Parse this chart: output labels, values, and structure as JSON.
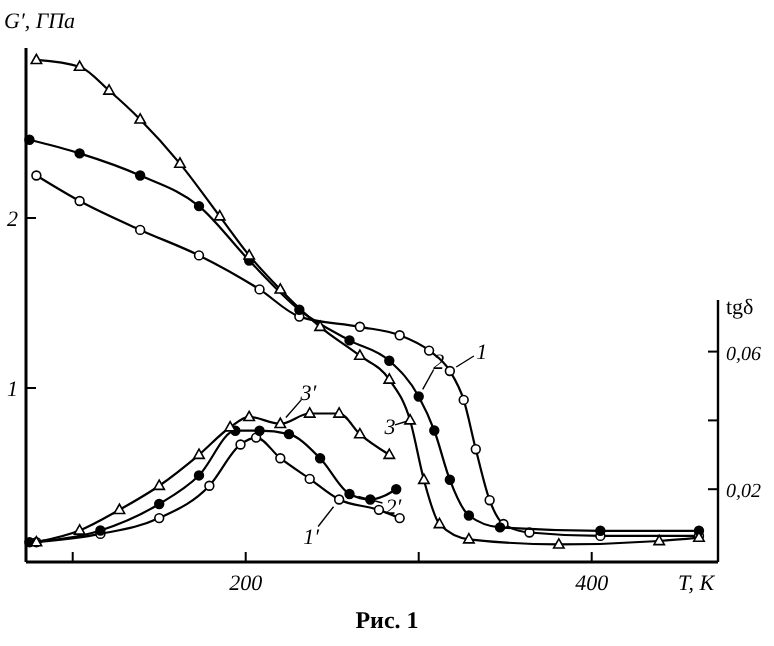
{
  "chart_data": {
    "type": "line",
    "xlabel": "T, К",
    "ylabel": "G′, ГПа",
    "y2label": "tgδ",
    "annotations": [
      "Рис. 1"
    ],
    "xlim": [
      73,
      473
    ],
    "xticks": [
      {
        "value": 100,
        "label": null
      },
      200,
      {
        "value": 300,
        "label": null
      },
      400
    ],
    "ylim": [
      0,
      3
    ],
    "yticks": [
      1,
      2
    ],
    "y2lim": [
      0,
      0.075
    ],
    "y2ticks": [
      {
        "value": 0.02,
        "label": "0,02"
      },
      {
        "value": 0.04,
        "label": null
      },
      {
        "value": 0.06,
        "label": "0,06"
      }
    ],
    "grid": false,
    "legend": "right",
    "line_style": "solid",
    "series": [
      {
        "name": "1",
        "color": "#000000",
        "marker": "circle",
        "x": [
          79,
          104,
          139,
          173,
          208,
          231,
          266,
          289,
          306,
          318,
          326,
          333,
          341,
          349,
          364,
          405,
          462
        ],
        "values": [
          2.25,
          2.1,
          1.93,
          1.78,
          1.58,
          1.42,
          1.36,
          1.31,
          1.22,
          1.1,
          0.93,
          0.64,
          0.34,
          0.2,
          0.15,
          0.13,
          0.13
        ]
      },
      {
        "name": "2",
        "color": "#000000",
        "marker": "circle",
        "x": [
          75,
          104,
          139,
          173,
          202,
          231,
          260,
          283,
          300,
          309,
          318,
          329,
          347,
          405,
          462
        ],
        "values": [
          2.46,
          2.38,
          2.25,
          2.07,
          1.75,
          1.46,
          1.28,
          1.16,
          0.95,
          0.75,
          0.46,
          0.25,
          0.18,
          0.16,
          0.16
        ]
      },
      {
        "name": "3",
        "color": "#000000",
        "marker": "triangle",
        "x": [
          79,
          104,
          121,
          139,
          162,
          185,
          202,
          220,
          243,
          266,
          283,
          295,
          303,
          312,
          329,
          381,
          439,
          462
        ],
        "values": [
          2.93,
          2.89,
          2.75,
          2.58,
          2.32,
          2.01,
          1.78,
          1.58,
          1.36,
          1.19,
          1.05,
          0.81,
          0.46,
          0.2,
          0.11,
          0.08,
          0.1,
          0.12
        ]
      },
      {
        "name": "1′",
        "color": "#000000",
        "marker": "circle",
        "axis": "y2",
        "x": [
          79,
          116,
          150,
          179,
          197,
          206,
          220,
          237,
          254,
          277,
          289
        ],
        "values": [
          0.0046,
          0.007,
          0.0116,
          0.021,
          0.033,
          0.035,
          0.029,
          0.023,
          0.017,
          0.014,
          0.0116
        ]
      },
      {
        "name": "2′",
        "color": "#000000",
        "marker": "circle",
        "axis": "y2",
        "x": [
          75,
          116,
          150,
          173,
          194,
          208,
          225,
          243,
          260,
          272,
          287
        ],
        "values": [
          0.0046,
          0.008,
          0.0157,
          0.024,
          0.037,
          0.037,
          0.036,
          0.029,
          0.0186,
          0.017,
          0.02
        ]
      },
      {
        "name": "3′",
        "color": "#000000",
        "marker": "triangle",
        "axis": "y2",
        "x": [
          79,
          104,
          127,
          150,
          173,
          191,
          202,
          220,
          237,
          254,
          266,
          283
        ],
        "values": [
          0.0046,
          0.008,
          0.014,
          0.021,
          0.03,
          0.038,
          0.041,
          0.039,
          0.042,
          0.042,
          0.036,
          0.03
        ]
      }
    ]
  }
}
